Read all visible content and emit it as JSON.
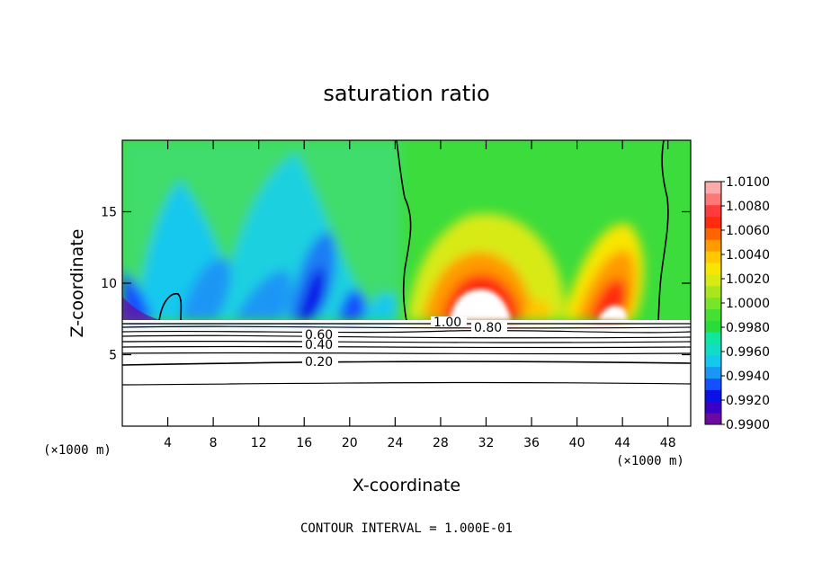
{
  "chart_data": {
    "type": "heatmap",
    "title": "saturation ratio",
    "xlabel": "X-coordinate",
    "ylabel": "Z-coordinate",
    "x_unit_label": "(×1000 m)",
    "footer": "CONTOUR INTERVAL = 1.000E-01",
    "xlim": [
      0,
      50
    ],
    "ylim": [
      0,
      20
    ],
    "x_ticks": [
      4,
      8,
      12,
      16,
      20,
      24,
      28,
      32,
      36,
      40,
      44,
      48
    ],
    "y_ticks": [
      5,
      10,
      15
    ],
    "colorbar": {
      "ticks": [
        "0.9900",
        "0.9920",
        "0.9940",
        "0.9960",
        "0.9980",
        "1.0000",
        "1.0020",
        "1.0040",
        "1.0060",
        "1.0080",
        "1.0100"
      ],
      "colors": [
        "#6a0aa0",
        "#3a00c8",
        "#0a10e6",
        "#1450ff",
        "#1a96f5",
        "#14c8ee",
        "#10dcc8",
        "#10e6a0",
        "#28dc3c",
        "#46e032",
        "#78e628",
        "#aae61e",
        "#d8ea14",
        "#f8e600",
        "#ffc800",
        "#ff9a00",
        "#ff6400",
        "#ff2a10",
        "#ff3c3c",
        "#ff7878",
        "#ffaaaa"
      ]
    },
    "contour_labels": [
      "1.00",
      "0.80",
      "0.60",
      "0.40",
      "0.20"
    ],
    "field_regions": [
      {
        "x_range": [
          0,
          24
        ],
        "z_range": [
          7.2,
          20
        ],
        "value_range": [
          0.99,
          1.0
        ]
      },
      {
        "x_range": [
          24.5,
          46.5
        ],
        "z_range": [
          7.2,
          20
        ],
        "value_range": [
          1.0,
          1.01
        ]
      },
      {
        "x_range": [
          46.5,
          50
        ],
        "z_range": [
          7.2,
          20
        ],
        "value_range": [
          0.996,
          1.0
        ]
      }
    ],
    "contour_lines_below_cloud": [
      7.0,
      6.75,
      6.45,
      6.1,
      5.75,
      5.35,
      4.9,
      4.35,
      2.9
    ]
  }
}
